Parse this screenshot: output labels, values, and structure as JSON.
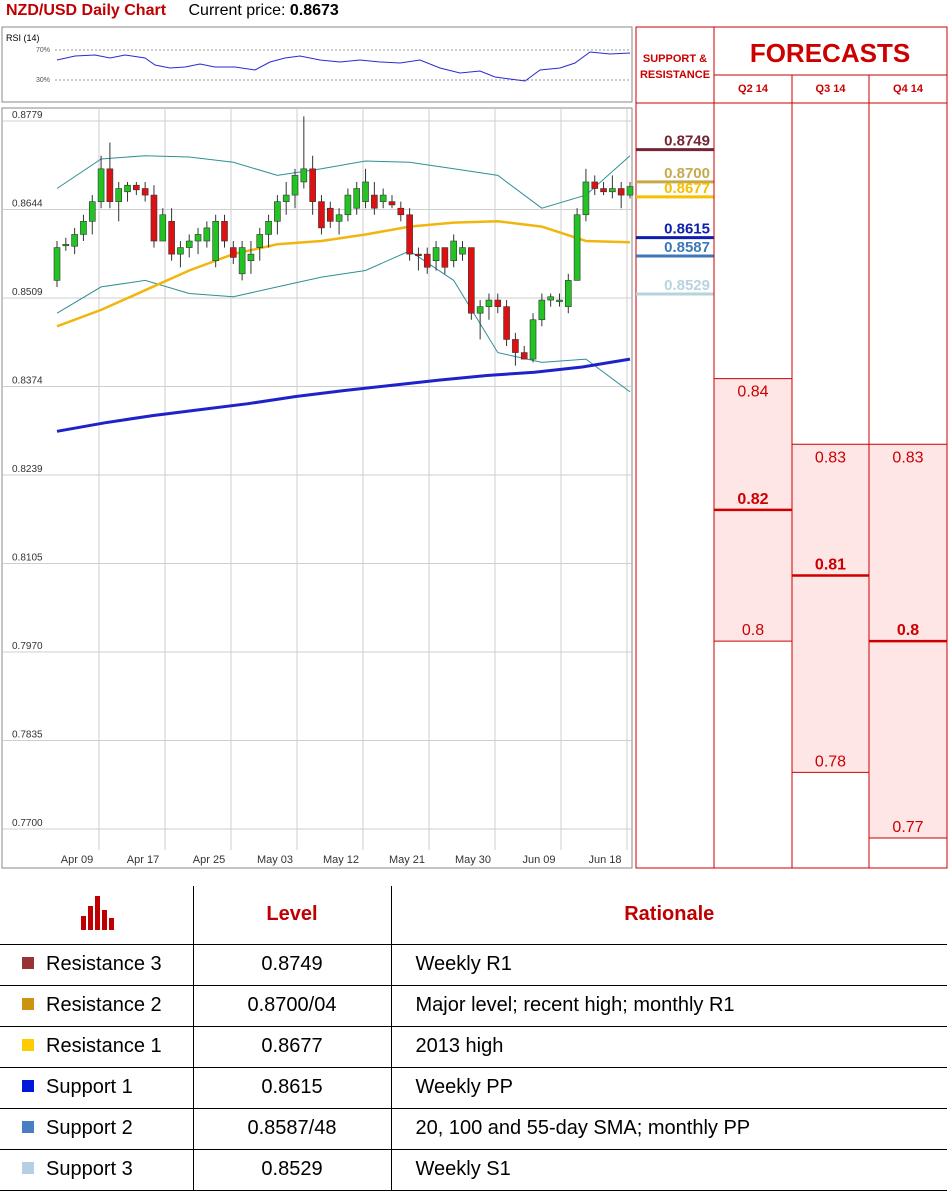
{
  "header": {
    "title": "NZD/USD Daily Chart",
    "price_label": "Current price:",
    "price": "0.8673"
  },
  "rsi_panel": {
    "label": "RSI (14)",
    "levels": [
      "70%",
      "30%"
    ]
  },
  "chart_data": [
    {
      "type": "candlestick",
      "title": "NZD/USD Daily Chart",
      "y_ticks": [
        "0.8779",
        "0.8644",
        "0.8509",
        "0.8374",
        "0.8239",
        "0.8105",
        "0.7970",
        "0.7835",
        "0.7700"
      ],
      "ylim": [
        0.77,
        0.8779
      ],
      "x_ticks": [
        "Apr 09",
        "Apr 17",
        "Apr 25",
        "May 03",
        "May 12",
        "May 21",
        "May 30",
        "Jun 09",
        "Jun 18"
      ],
      "grid": true,
      "ohlc": [
        [
          0.853,
          0.859,
          0.852,
          0.858
        ],
        [
          0.8585,
          0.8595,
          0.8575,
          0.8585
        ],
        [
          0.8582,
          0.861,
          0.857,
          0.86
        ],
        [
          0.86,
          0.863,
          0.859,
          0.862
        ],
        [
          0.862,
          0.866,
          0.86,
          0.865
        ],
        [
          0.865,
          0.872,
          0.864,
          0.87
        ],
        [
          0.87,
          0.874,
          0.864,
          0.865
        ],
        [
          0.865,
          0.868,
          0.862,
          0.867
        ],
        [
          0.8665,
          0.868,
          0.865,
          0.8675
        ],
        [
          0.8675,
          0.868,
          0.866,
          0.8668
        ],
        [
          0.867,
          0.868,
          0.865,
          0.866
        ],
        [
          0.866,
          0.8675,
          0.858,
          0.859
        ],
        [
          0.859,
          0.864,
          0.859,
          0.863
        ],
        [
          0.862,
          0.864,
          0.856,
          0.857
        ],
        [
          0.857,
          0.859,
          0.855,
          0.858
        ],
        [
          0.858,
          0.86,
          0.8565,
          0.859
        ],
        [
          0.859,
          0.861,
          0.857,
          0.86
        ],
        [
          0.859,
          0.862,
          0.858,
          0.861
        ],
        [
          0.856,
          0.863,
          0.855,
          0.862
        ],
        [
          0.862,
          0.863,
          0.858,
          0.859
        ],
        [
          0.858,
          0.859,
          0.8555,
          0.8565
        ],
        [
          0.854,
          0.859,
          0.853,
          0.858
        ],
        [
          0.856,
          0.859,
          0.854,
          0.857
        ],
        [
          0.858,
          0.861,
          0.856,
          0.86
        ],
        [
          0.86,
          0.863,
          0.858,
          0.862
        ],
        [
          0.862,
          0.866,
          0.86,
          0.865
        ],
        [
          0.865,
          0.868,
          0.863,
          0.866
        ],
        [
          0.866,
          0.87,
          0.864,
          0.869
        ],
        [
          0.868,
          0.878,
          0.867,
          0.87
        ],
        [
          0.87,
          0.872,
          0.863,
          0.865
        ],
        [
          0.865,
          0.866,
          0.86,
          0.861
        ],
        [
          0.864,
          0.865,
          0.861,
          0.862
        ],
        [
          0.862,
          0.864,
          0.86,
          0.863
        ],
        [
          0.863,
          0.867,
          0.862,
          0.866
        ],
        [
          0.864,
          0.868,
          0.863,
          0.867
        ],
        [
          0.865,
          0.87,
          0.864,
          0.868
        ],
        [
          0.866,
          0.868,
          0.863,
          0.864
        ],
        [
          0.865,
          0.867,
          0.864,
          0.866
        ],
        [
          0.865,
          0.866,
          0.864,
          0.8645
        ],
        [
          0.864,
          0.865,
          0.862,
          0.863
        ],
        [
          0.863,
          0.864,
          0.856,
          0.857
        ],
        [
          0.857,
          0.858,
          0.8545,
          0.8568
        ],
        [
          0.857,
          0.858,
          0.854,
          0.855
        ],
        [
          0.856,
          0.859,
          0.8545,
          0.858
        ],
        [
          0.858,
          0.858,
          0.854,
          0.855
        ],
        [
          0.856,
          0.86,
          0.855,
          0.859
        ],
        [
          0.857,
          0.859,
          0.856,
          0.858
        ],
        [
          0.858,
          0.858,
          0.847,
          0.848
        ],
        [
          0.848,
          0.85,
          0.844,
          0.849
        ],
        [
          0.849,
          0.851,
          0.847,
          0.85
        ],
        [
          0.85,
          0.851,
          0.848,
          0.849
        ],
        [
          0.849,
          0.85,
          0.843,
          0.844
        ],
        [
          0.844,
          0.845,
          0.84,
          0.842
        ],
        [
          0.842,
          0.843,
          0.841,
          0.841
        ],
        [
          0.841,
          0.848,
          0.8405,
          0.847
        ],
        [
          0.847,
          0.851,
          0.846,
          0.85
        ],
        [
          0.85,
          0.851,
          0.849,
          0.8505
        ],
        [
          0.85,
          0.851,
          0.849,
          0.85
        ],
        [
          0.849,
          0.854,
          0.848,
          0.853
        ],
        [
          0.853,
          0.864,
          0.853,
          0.863
        ],
        [
          0.863,
          0.87,
          0.862,
          0.868
        ],
        [
          0.868,
          0.869,
          0.866,
          0.867
        ],
        [
          0.867,
          0.868,
          0.866,
          0.8665
        ],
        [
          0.8665,
          0.869,
          0.8655,
          0.867
        ],
        [
          0.867,
          0.868,
          0.864,
          0.866
        ],
        [
          0.866,
          0.868,
          0.8655,
          0.8673
        ]
      ],
      "sma_yellow": [
        0.846,
        0.8485,
        0.8515,
        0.8545,
        0.857,
        0.8585,
        0.859,
        0.86,
        0.8612,
        0.8618,
        0.862,
        0.8612,
        0.859,
        0.8588
      ],
      "sma_blue": [
        0.83,
        0.8313,
        0.8324,
        0.8333,
        0.8342,
        0.8353,
        0.8362,
        0.837,
        0.8378,
        0.8385,
        0.839,
        0.8398,
        0.841
      ],
      "bb_upper": [
        0.867,
        0.8715,
        0.872,
        0.8718,
        0.871,
        0.869,
        0.87,
        0.8712,
        0.871,
        0.87,
        0.869,
        0.864,
        0.866,
        0.872
      ],
      "bb_lower": [
        0.848,
        0.852,
        0.853,
        0.851,
        0.8505,
        0.852,
        0.8535,
        0.8545,
        0.8575,
        0.853,
        0.842,
        0.8405,
        0.841,
        0.836
      ]
    },
    {
      "type": "table",
      "title": "FORECASTS",
      "columns": [
        "Q2 14",
        "Q3 14",
        "Q4 14"
      ],
      "high": [
        0.84,
        0.83,
        0.83
      ],
      "mid": [
        0.82,
        0.81,
        0.8
      ],
      "low": [
        0.8,
        0.78,
        0.77
      ]
    }
  ],
  "sr_panel": {
    "heading": "SUPPORT & RESISTANCE",
    "levels": [
      {
        "label": "0.8749",
        "value": 0.8749,
        "color": "#722535"
      },
      {
        "label": "0.8700",
        "value": 0.87,
        "color": "#c7a94d"
      },
      {
        "label": "0.8677",
        "value": 0.8677,
        "color": "#f5c000"
      },
      {
        "label": "0.8615",
        "value": 0.8615,
        "color": "#0d1fae"
      },
      {
        "label": "0.8587",
        "value": 0.8587,
        "color": "#3d78b8"
      },
      {
        "label": "0.8529",
        "value": 0.8529,
        "color": "#b7d4de"
      }
    ]
  },
  "forecasts": {
    "title": "FORECASTS",
    "quarters": [
      {
        "label": "Q2 14",
        "high": "0.84",
        "mid": "0.82",
        "low": "0.8"
      },
      {
        "label": "Q3 14",
        "high": "0.83",
        "mid": "0.81",
        "low": "0.78"
      },
      {
        "label": "Q4 14",
        "high": "0.83",
        "mid": "0.8",
        "low": "0.77"
      }
    ]
  },
  "levels_table": {
    "headers": [
      "Level",
      "Rationale"
    ],
    "rows": [
      {
        "name": "Resistance 3",
        "level": "0.8749",
        "rationale": "Weekly R1",
        "color": "#993333"
      },
      {
        "name": "Resistance 2",
        "level": "0.8700/04",
        "rationale": "Major level; recent high; monthly R1",
        "color": "#c9950e"
      },
      {
        "name": "Resistance 1",
        "level": "0.8677",
        "rationale": "2013 high",
        "color": "#ffcc00"
      },
      {
        "name": "Support 1",
        "level": "0.8615",
        "rationale": "Weekly PP",
        "color": "#0018d8"
      },
      {
        "name": "Support 2",
        "level": "0.8587/48",
        "rationale": "20, 100 and 55-day SMA; monthly PP",
        "color": "#4a7ec4"
      },
      {
        "name": "Support 3",
        "level": "0.8529",
        "rationale": "Weekly S1",
        "color": "#b9cde5"
      }
    ]
  }
}
